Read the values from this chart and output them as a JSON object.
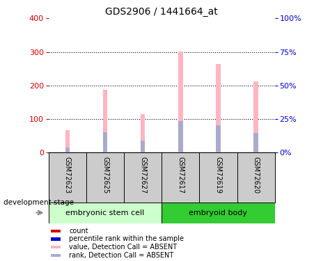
{
  "title": "GDS2906 / 1441664_at",
  "samples": [
    "GSM72623",
    "GSM72625",
    "GSM72627",
    "GSM72617",
    "GSM72619",
    "GSM72620"
  ],
  "pink_values": [
    68,
    188,
    115,
    302,
    263,
    212
  ],
  "blue_values": [
    15,
    60,
    35,
    93,
    82,
    58
  ],
  "ylim_left": [
    0,
    400
  ],
  "ylim_right": [
    0,
    100
  ],
  "yticks_left": [
    0,
    100,
    200,
    300,
    400
  ],
  "yticks_right": [
    0,
    25,
    50,
    75,
    100
  ],
  "ytick_labels_right": [
    "0%",
    "25%",
    "50%",
    "75%",
    "100%"
  ],
  "left_axis_color": "#cc0000",
  "right_axis_color": "#0000cc",
  "bar_width": 0.12,
  "pink_color": "#ffb6c1",
  "blue_color": "#aaaacc",
  "red_color": "#cc0000",
  "blue_dot_color": "#0000cc",
  "bg_color": "#ffffff",
  "label_area_bg": "#cccccc",
  "group1_color": "#ccffcc",
  "group2_color": "#33cc33",
  "legend_items": [
    {
      "color": "#cc0000",
      "label": "count"
    },
    {
      "color": "#0000cc",
      "label": "percentile rank within the sample"
    },
    {
      "color": "#ffb6c1",
      "label": "value, Detection Call = ABSENT"
    },
    {
      "color": "#aaaacc",
      "label": "rank, Detection Call = ABSENT"
    }
  ],
  "development_stage_label": "development stage"
}
